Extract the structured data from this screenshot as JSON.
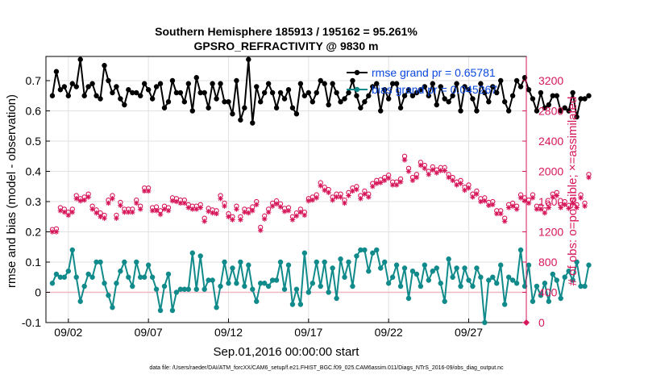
{
  "chart_data": {
    "type": "line",
    "title": "Southern Hemisphere 185913 / 195162 = 95.261%",
    "subtitle": "GPSRO_REFRACTIVITY @ 9830 m",
    "xlabel": "Sep.01,2016 00:00:00 start",
    "ylabel": "rmse and bias (model - observation)",
    "y2label": "# of obs: o=possible; ×=assimilated",
    "footer": "data file: /Users/raeder/DAI/ATM_forcXX/CAM6_setup/f.e21.FHIST_BGC.f09_025.CAM6assim.011/Diags_NTrS_2016-09/obs_diag_output.nc",
    "xlim": [
      0.6,
      30.6
    ],
    "ylim": [
      -0.1,
      0.78
    ],
    "y2lim": [
      0,
      3520
    ],
    "grid": true,
    "x_ticks": [
      {
        "v": 2,
        "label": "09/02"
      },
      {
        "v": 7,
        "label": "09/07"
      },
      {
        "v": 12,
        "label": "09/12"
      },
      {
        "v": 17,
        "label": "09/17"
      },
      {
        "v": 22,
        "label": "09/22"
      },
      {
        "v": 27,
        "label": "09/27"
      }
    ],
    "y_ticks": [
      {
        "v": -0.1,
        "label": "-0.1"
      },
      {
        "v": 0,
        "label": "0"
      },
      {
        "v": 0.1,
        "label": "0.1"
      },
      {
        "v": 0.2,
        "label": "0.2"
      },
      {
        "v": 0.3,
        "label": "0.3"
      },
      {
        "v": 0.4,
        "label": "0.4"
      },
      {
        "v": 0.5,
        "label": "0.5"
      },
      {
        "v": 0.6,
        "label": "0.6"
      },
      {
        "v": 0.7,
        "label": "0.7"
      }
    ],
    "y2_ticks": [
      {
        "v": 0,
        "label": "0"
      },
      {
        "v": 400,
        "label": "400"
      },
      {
        "v": 800,
        "label": "800"
      },
      {
        "v": 1200,
        "label": "1200"
      },
      {
        "v": 1600,
        "label": "1600"
      },
      {
        "v": 2000,
        "label": "2000"
      },
      {
        "v": 2400,
        "label": "2400"
      },
      {
        "v": 2800,
        "label": "2800"
      },
      {
        "v": 3200,
        "label": "3200"
      }
    ],
    "legend": [
      {
        "name": "rmse grand pr = 0.65781",
        "color": "#000000"
      },
      {
        "name": "bias grand pr = 0.045267",
        "color": "#108a8a"
      }
    ],
    "colors": {
      "rmse": "#000000",
      "bias": "#108a8a",
      "obs": "#d6165a",
      "zero": "#f0b8c0",
      "grid": "#e2e2e2",
      "legend_text": "#0a48e0"
    },
    "series": [
      {
        "name": "rmse",
        "x0": 1.0,
        "dx": 0.25,
        "values": [
          0.65,
          0.73,
          0.67,
          0.68,
          0.65,
          0.69,
          0.68,
          0.77,
          0.65,
          0.68,
          0.69,
          0.65,
          0.64,
          0.75,
          0.7,
          0.66,
          0.68,
          0.64,
          0.62,
          0.67,
          0.66,
          0.66,
          0.65,
          0.69,
          0.67,
          0.64,
          0.68,
          0.69,
          0.61,
          0.63,
          0.7,
          0.66,
          0.66,
          0.63,
          0.69,
          0.6,
          0.71,
          0.66,
          0.66,
          0.61,
          0.69,
          0.64,
          0.69,
          0.63,
          0.63,
          0.59,
          0.7,
          0.57,
          0.61,
          0.77,
          0.56,
          0.68,
          0.63,
          0.66,
          0.69,
          0.66,
          0.61,
          0.66,
          0.64,
          0.67,
          0.61,
          0.59,
          0.69,
          0.65,
          0.66,
          0.63,
          0.66,
          0.7,
          0.69,
          0.62,
          0.69,
          0.66,
          0.63,
          0.64,
          0.66,
          0.7,
          0.65,
          0.61,
          0.63,
          0.65,
          0.68,
          0.69,
          0.6,
          0.67,
          0.64,
          0.69,
          0.69,
          0.61,
          0.65,
          0.67,
          0.65,
          0.66,
          0.67,
          0.68,
          0.65,
          0.69,
          0.62,
          0.68,
          0.64,
          0.63,
          0.65,
          0.69,
          0.6,
          0.68,
          0.67,
          0.64,
          0.6,
          0.69,
          0.66,
          0.63,
          0.68,
          0.66,
          0.7,
          0.63,
          0.6,
          0.65,
          0.7,
          0.68,
          0.71,
          0.67,
          0.64,
          0.6,
          0.66,
          0.61,
          0.62,
          0.65,
          0.65,
          0.6,
          0.61,
          0.6,
          0.66,
          0.58,
          0.64,
          0.64,
          0.65
        ]
      },
      {
        "name": "bias",
        "x0": 1.0,
        "dx": 0.25,
        "values": [
          0.03,
          0.06,
          0.05,
          0.05,
          0.07,
          0.14,
          0.05,
          -0.03,
          0.02,
          0.06,
          0.05,
          0.1,
          0.1,
          0.03,
          -0.01,
          -0.05,
          0.03,
          0.07,
          0.1,
          0.05,
          0.02,
          0.1,
          0.05,
          0.05,
          0.09,
          0.05,
          0.01,
          -0.06,
          0.02,
          0.06,
          -0.06,
          0.0,
          0.01,
          0.01,
          0.01,
          0.13,
          0.01,
          0.12,
          0.01,
          0.04,
          0.04,
          -0.05,
          0.02,
          0.1,
          0.03,
          0.08,
          0.03,
          0.1,
          0.02,
          0.09,
          0.01,
          -0.03,
          0.03,
          0.03,
          0.02,
          0.04,
          0.04,
          0.1,
          0.01,
          0.09,
          -0.04,
          0.01,
          -0.04,
          0.13,
          0.0,
          0.03,
          0.1,
          0.02,
          0.1,
          0.0,
          0.08,
          -0.02,
          0.11,
          0.05,
          0.1,
          0.02,
          0.12,
          0.14,
          0.14,
          0.07,
          0.13,
          0.14,
          0.08,
          0.1,
          0.03,
          0.05,
          0.09,
          0.02,
          0.08,
          -0.02,
          0.07,
          0.06,
          0.02,
          0.09,
          0.04,
          0.07,
          0.08,
          0.03,
          -0.03,
          0.11,
          0.05,
          0.08,
          0.02,
          0.08,
          0.04,
          0.02,
          0.08,
          0.05,
          -0.1,
          0.04,
          0.05,
          0.03,
          0.09,
          -0.04,
          0.05,
          0.04,
          0.03,
          0.14,
          0.02,
          0.09,
          -0.03,
          0.02,
          -0.01,
          0.03,
          -0.03,
          0.06,
          0.04,
          -0.02,
          0.05,
          0.07,
          0.04,
          0.1,
          0.02,
          0.02,
          0.09
        ]
      },
      {
        "name": "obs_possible",
        "x0": 1.0,
        "dx": 0.25,
        "values": [
          1230,
          1240,
          1520,
          1500,
          1460,
          1500,
          1680,
          1640,
          1660,
          1700,
          1540,
          1490,
          1450,
          1420,
          1620,
          1680,
          1420,
          1590,
          1500,
          1500,
          1500,
          1620,
          1540,
          1780,
          1780,
          1520,
          1530,
          1480,
          1540,
          1520,
          1650,
          1640,
          1620,
          1620,
          1560,
          1540,
          1540,
          1560,
          1380,
          1510,
          1490,
          1480,
          1680,
          1580,
          1440,
          1400,
          1540,
          1400,
          1500,
          1490,
          1530,
          1600,
          1260,
          1410,
          1500,
          1580,
          1610,
          1570,
          1510,
          1520,
          1400,
          1450,
          1500,
          1460,
          1640,
          1660,
          1690,
          1850,
          1790,
          1760,
          1660,
          1700,
          1700,
          1620,
          1720,
          1780,
          1800,
          1680,
          1740,
          1700,
          1840,
          1880,
          1890,
          1920,
          1950,
          1860,
          1860,
          1900,
          2200,
          2040,
          1920,
          1960,
          2120,
          2080,
          2000,
          2060,
          2020,
          2050,
          2050,
          1960,
          1920,
          1860,
          1880,
          1790,
          1820,
          1700,
          1740,
          1640,
          1650,
          1590,
          1600,
          1480,
          1480,
          1380,
          1560,
          1580,
          1540,
          1690,
          1650,
          1620,
          1690,
          1540,
          1540,
          1490,
          1560,
          1700,
          1720,
          1560,
          1600,
          1550,
          1620,
          1560,
          1690,
          1580,
          1960
        ]
      },
      {
        "name": "obs_assimilated",
        "x0": 1.0,
        "dx": 0.25,
        "values": [
          1200,
          1200,
          1480,
          1460,
          1420,
          1460,
          1640,
          1610,
          1620,
          1660,
          1500,
          1450,
          1400,
          1380,
          1580,
          1640,
          1380,
          1550,
          1460,
          1460,
          1460,
          1580,
          1500,
          1740,
          1740,
          1480,
          1480,
          1430,
          1500,
          1480,
          1610,
          1600,
          1580,
          1580,
          1520,
          1500,
          1500,
          1520,
          1340,
          1470,
          1450,
          1440,
          1640,
          1540,
          1400,
          1360,
          1500,
          1360,
          1460,
          1450,
          1480,
          1560,
          1220,
          1370,
          1460,
          1540,
          1570,
          1530,
          1470,
          1480,
          1360,
          1410,
          1460,
          1420,
          1610,
          1620,
          1650,
          1810,
          1750,
          1720,
          1620,
          1660,
          1660,
          1580,
          1680,
          1740,
          1760,
          1640,
          1700,
          1660,
          1800,
          1840,
          1850,
          1880,
          1910,
          1820,
          1820,
          1860,
          2150,
          2000,
          1880,
          1920,
          2080,
          2040,
          1960,
          2020,
          1980,
          2010,
          2010,
          1920,
          1880,
          1820,
          1840,
          1750,
          1780,
          1660,
          1700,
          1600,
          1610,
          1550,
          1560,
          1440,
          1440,
          1340,
          1520,
          1540,
          1500,
          1650,
          1610,
          1580,
          1650,
          1500,
          1500,
          1450,
          1520,
          1660,
          1680,
          1520,
          1560,
          1510,
          1580,
          1520,
          1650,
          1540,
          1920
        ]
      }
    ]
  }
}
